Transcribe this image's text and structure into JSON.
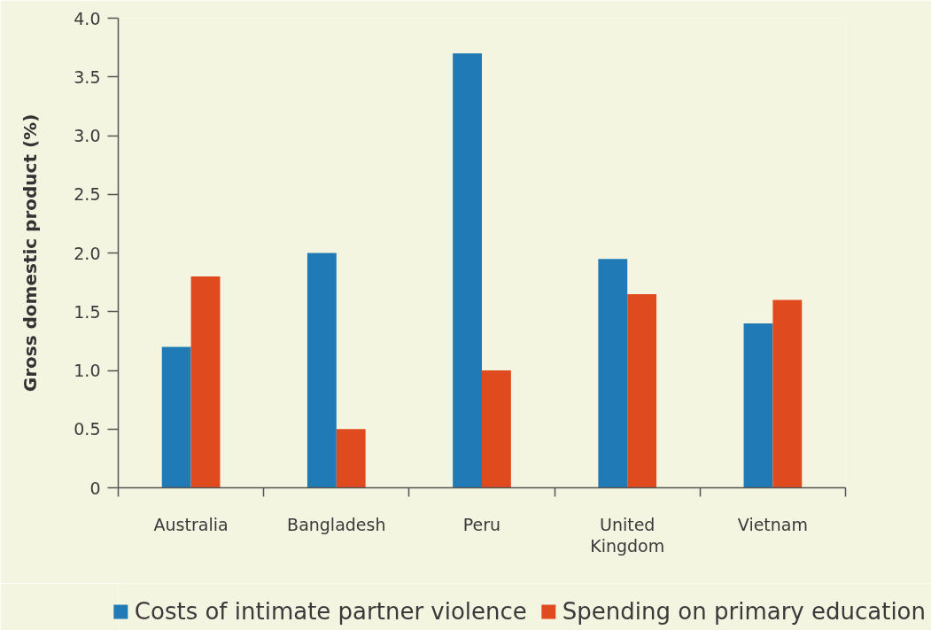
{
  "chart_data": {
    "type": "bar",
    "ylabel": "Gross domestic product (%)",
    "categories": [
      "Australia",
      "Bangladesh",
      "Peru",
      "United Kingdom",
      "Vietnam"
    ],
    "series": [
      {
        "name": "Costs of intimate partner violence",
        "color": "#1f7ab5",
        "values": [
          1.2,
          2.0,
          3.7,
          1.95,
          1.4
        ]
      },
      {
        "name": "Spending on primary education",
        "color": "#e04a1f",
        "values": [
          1.8,
          0.5,
          1.0,
          1.65,
          1.6
        ]
      }
    ],
    "ylim": [
      0,
      4
    ],
    "yticks": [
      0,
      0.5,
      {
        "value": 1,
        "label": "1.0"
      },
      1.5,
      {
        "value": 2,
        "label": "2.0"
      },
      2.5,
      {
        "value": 3,
        "label": "3.0"
      },
      3.5,
      {
        "value": 4,
        "label": "4.0"
      }
    ],
    "legend": "bottom"
  }
}
